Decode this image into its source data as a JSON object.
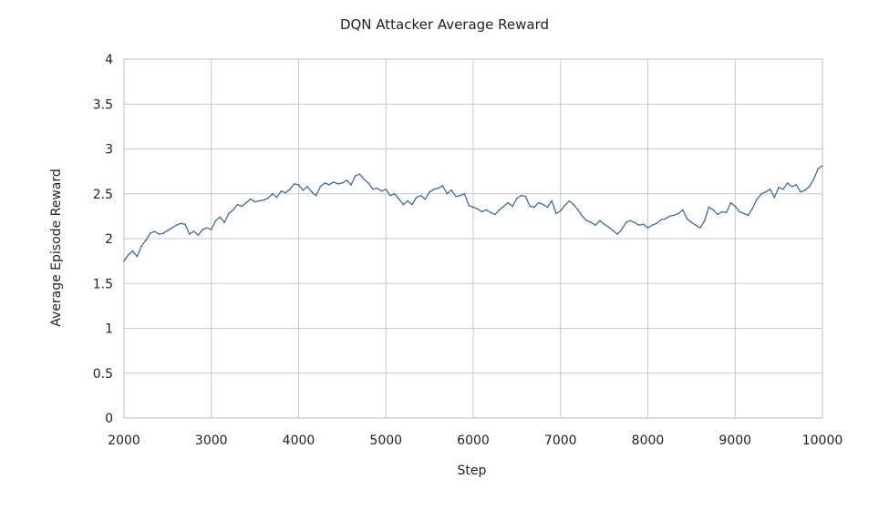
{
  "chart_data": {
    "type": "line",
    "title": "DQN Attacker Average Reward",
    "xlabel": "Step",
    "ylabel": "Average Episode Reward",
    "xlim": [
      2000,
      10000
    ],
    "ylim": [
      0,
      4
    ],
    "xticks": [
      2000,
      3000,
      4000,
      5000,
      6000,
      7000,
      8000,
      9000,
      10000
    ],
    "yticks": [
      0,
      0.5,
      1,
      1.5,
      2,
      2.5,
      3,
      3.5,
      4
    ],
    "grid": true,
    "legend": "none",
    "line_color": "#3a6ea5",
    "series": [
      {
        "x": [
          2000,
          2050,
          2100,
          2150,
          2200,
          2250,
          2300,
          2350,
          2400,
          2450,
          2500,
          2550,
          2600,
          2650,
          2700,
          2750,
          2800,
          2850,
          2900,
          2950,
          3000,
          3050,
          3100,
          3150,
          3200,
          3250,
          3300,
          3350,
          3400,
          3450,
          3500,
          3550,
          3600,
          3650,
          3700,
          3750,
          3800,
          3850,
          3900,
          3950,
          4000,
          4050,
          4100,
          4150,
          4200,
          4250,
          4300,
          4350,
          4400,
          4450,
          4500,
          4550,
          4600,
          4650,
          4700,
          4750,
          4800,
          4850,
          4900,
          4950,
          5000,
          5050,
          5100,
          5150,
          5200,
          5250,
          5300,
          5350,
          5400,
          5450,
          5500,
          5550,
          5600,
          5650,
          5700,
          5750,
          5800,
          5850,
          5900,
          5950,
          6000,
          6050,
          6100,
          6150,
          6200,
          6250,
          6300,
          6350,
          6400,
          6450,
          6500,
          6550,
          6600,
          6650,
          6700,
          6750,
          6800,
          6850,
          6900,
          6950,
          7000,
          7050,
          7100,
          7150,
          7200,
          7250,
          7300,
          7350,
          7400,
          7450,
          7500,
          7550,
          7600,
          7650,
          7700,
          7750,
          7800,
          7850,
          7900,
          7950,
          8000,
          8050,
          8100,
          8150,
          8200,
          8250,
          8300,
          8350,
          8400,
          8450,
          8500,
          8550,
          8600,
          8650,
          8700,
          8750,
          8800,
          8850,
          8900,
          8950,
          9000,
          9050,
          9100,
          9150,
          9200,
          9250,
          9300,
          9350,
          9400,
          9450,
          9500,
          9550,
          9600,
          9650,
          9700,
          9750,
          9800,
          9850,
          9900,
          9950,
          10000
        ],
        "y": [
          1.75,
          1.82,
          1.86,
          1.8,
          1.92,
          1.98,
          2.06,
          2.08,
          2.05,
          2.06,
          2.09,
          2.12,
          2.15,
          2.17,
          2.16,
          2.05,
          2.08,
          2.04,
          2.1,
          2.12,
          2.1,
          2.2,
          2.24,
          2.18,
          2.28,
          2.32,
          2.38,
          2.36,
          2.4,
          2.44,
          2.41,
          2.42,
          2.43,
          2.45,
          2.5,
          2.46,
          2.53,
          2.51,
          2.55,
          2.61,
          2.6,
          2.54,
          2.58,
          2.52,
          2.48,
          2.58,
          2.62,
          2.6,
          2.63,
          2.61,
          2.62,
          2.65,
          2.6,
          2.7,
          2.72,
          2.66,
          2.62,
          2.55,
          2.56,
          2.53,
          2.55,
          2.48,
          2.5,
          2.44,
          2.38,
          2.42,
          2.38,
          2.46,
          2.48,
          2.44,
          2.52,
          2.55,
          2.56,
          2.59,
          2.5,
          2.54,
          2.47,
          2.48,
          2.5,
          2.37,
          2.35,
          2.33,
          2.3,
          2.32,
          2.29,
          2.27,
          2.32,
          2.36,
          2.4,
          2.36,
          2.45,
          2.48,
          2.47,
          2.36,
          2.35,
          2.4,
          2.38,
          2.35,
          2.42,
          2.28,
          2.31,
          2.37,
          2.42,
          2.38,
          2.32,
          2.25,
          2.2,
          2.18,
          2.15,
          2.2,
          2.16,
          2.13,
          2.09,
          2.05,
          2.1,
          2.18,
          2.2,
          2.18,
          2.15,
          2.16,
          2.12,
          2.15,
          2.17,
          2.21,
          2.22,
          2.25,
          2.26,
          2.28,
          2.32,
          2.22,
          2.18,
          2.15,
          2.12,
          2.2,
          2.35,
          2.32,
          2.27,
          2.3,
          2.29,
          2.4,
          2.36,
          2.3,
          2.28,
          2.26,
          2.34,
          2.44,
          2.5,
          2.52,
          2.55,
          2.46,
          2.57,
          2.55,
          2.62,
          2.58,
          2.6,
          2.52,
          2.54,
          2.58,
          2.66,
          2.78,
          2.81
        ]
      }
    ]
  }
}
